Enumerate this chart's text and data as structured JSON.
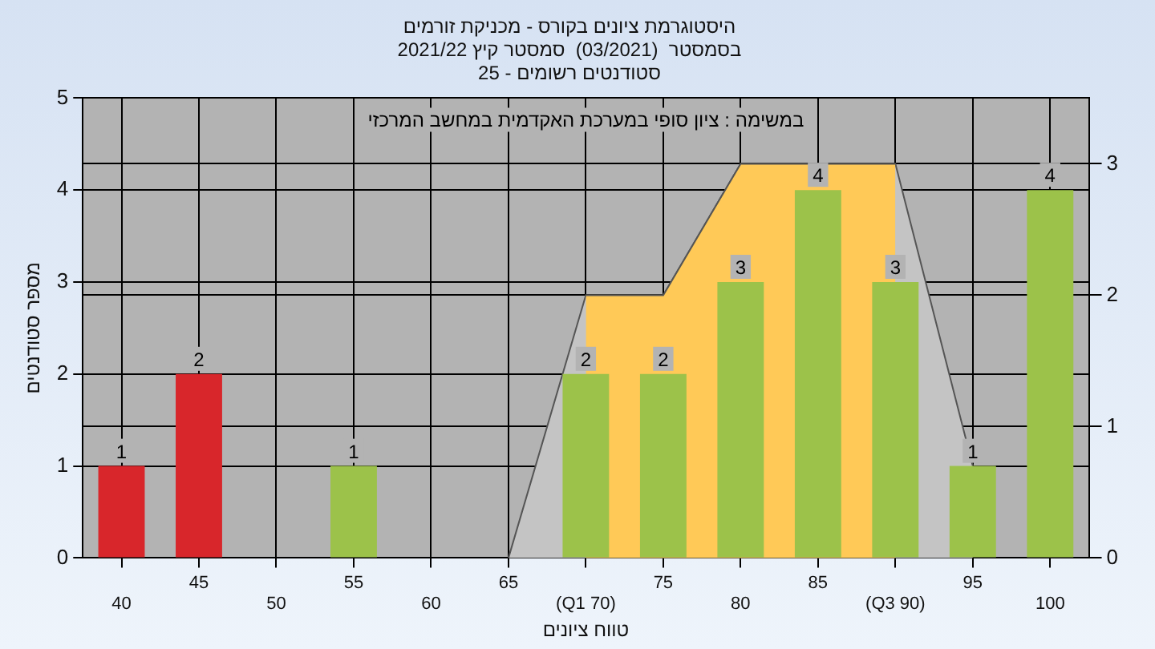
{
  "chart_data": {
    "type": "bar",
    "title": "היסטוגרמת ציונים בקורס - מכניקת זורמים\nבסמסטר  (03/2021)  סמסטר קיץ 2021/22\nסטודנטים רשומים - 25",
    "xlabel": "טווח ציונים",
    "ylabel": "מספר סטודנטים",
    "annotations": [
      "במשימה : ציון סופי במערכת האקדמית במחשב המרכזי"
    ],
    "categories": [
      "40",
      "45",
      "50",
      "55",
      "60",
      "65",
      "(Q1 70)",
      "75",
      "80",
      "85",
      "(Q3 90)",
      "95",
      "100"
    ],
    "series": [
      {
        "values": [
          1,
          2,
          0,
          1,
          0,
          0,
          2,
          2,
          3,
          4,
          3,
          1,
          4
        ],
        "value_labels": [
          "1",
          "2",
          null,
          "1",
          null,
          null,
          "2",
          "2",
          "3",
          "4",
          "3",
          "1",
          "4"
        ],
        "colors": [
          "#d8262b",
          "#d8262b",
          "#9cc24a",
          "#9cc24a",
          "#9cc24a",
          "#9cc24a",
          "#9cc24a",
          "#9cc24a",
          "#9cc24a",
          "#9cc24a",
          "#9cc24a",
          "#9cc24a",
          "#9cc24a"
        ]
      },
      {
        "type": "area",
        "axis": "y2",
        "color": "#ffc957",
        "values": [
          null,
          null,
          null,
          null,
          null,
          null,
          2,
          2,
          3,
          3,
          3,
          null,
          null
        ]
      },
      {
        "type": "area",
        "axis": "y2",
        "color": "#c4c4c4",
        "values": [
          null,
          null,
          null,
          null,
          null,
          0,
          2,
          2,
          3,
          3,
          3,
          0.7,
          null
        ]
      }
    ],
    "ylim": [
      0,
      5
    ],
    "yticks": [
      0,
      1,
      2,
      3,
      4,
      5
    ],
    "y2lim": [
      0,
      3.5
    ],
    "y2ticks": [
      0,
      1,
      2,
      3
    ],
    "grid": true,
    "legend": false
  }
}
